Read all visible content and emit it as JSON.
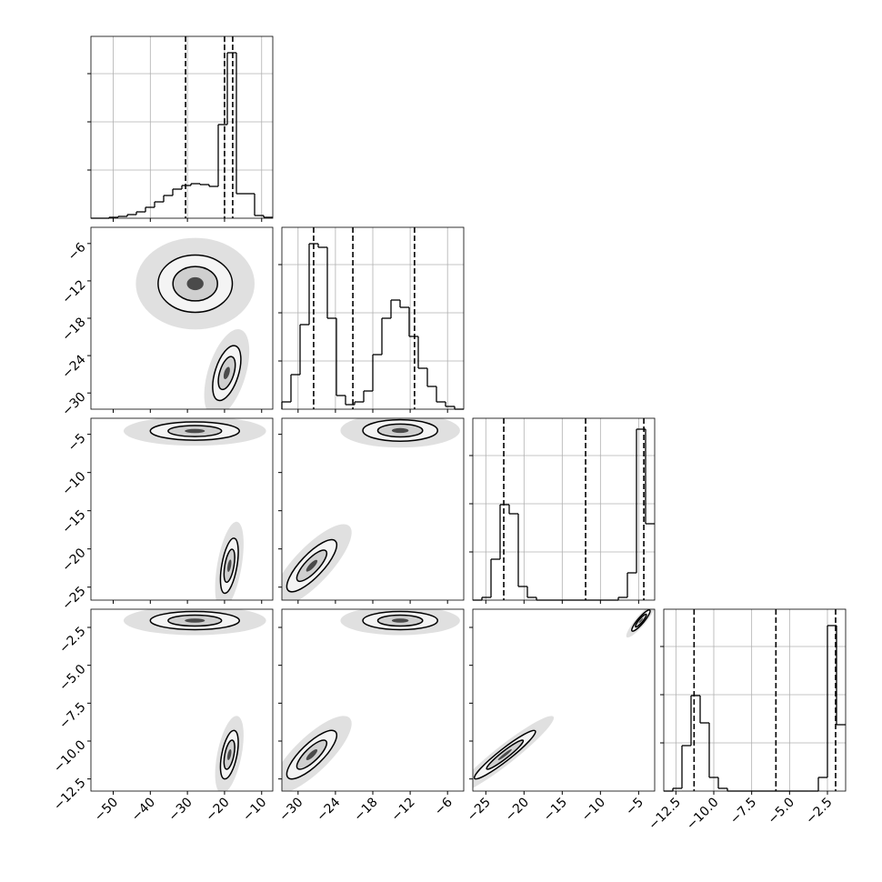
{
  "chart_data": {
    "type": "corner",
    "grid": true,
    "parameters": [
      {
        "lim": [
          -56,
          -7
        ],
        "ticks": [
          {
            "value": -50,
            "label": "−50"
          },
          {
            "value": -40,
            "label": "−40"
          },
          {
            "value": -30,
            "label": "−30"
          },
          {
            "value": -20,
            "label": "−20"
          },
          {
            "value": -10,
            "label": "−10"
          }
        ]
      },
      {
        "lim": [
          -32.6,
          -3.4
        ],
        "ticks": [
          {
            "value": -30,
            "label": "−30"
          },
          {
            "value": -24,
            "label": "−24"
          },
          {
            "value": -18,
            "label": "−18"
          },
          {
            "value": -12,
            "label": "−12"
          },
          {
            "value": -6,
            "label": "−6"
          }
        ]
      },
      {
        "lim": [
          -26.7,
          -2.9
        ],
        "ticks": [
          {
            "value": -25,
            "label": "−25"
          },
          {
            "value": -20,
            "label": "−20"
          },
          {
            "value": -15,
            "label": "−15"
          },
          {
            "value": -10,
            "label": "−10"
          },
          {
            "value": -5,
            "label": "−5"
          }
        ]
      },
      {
        "lim": [
          -13.3,
          -1.3
        ],
        "ticks": [
          {
            "value": -12.5,
            "label": "−12.5"
          },
          {
            "value": -10,
            "label": "−10.0"
          },
          {
            "value": -7.5,
            "label": "−7.5"
          },
          {
            "value": -5,
            "label": "−5.0"
          },
          {
            "value": -2.5,
            "label": "−2.5"
          }
        ]
      }
    ],
    "hist_ylim": [
      0,
      200
    ],
    "hist_yticks": [
      53,
      106,
      159
    ],
    "histograms": [
      {
        "bins": [
          -56,
          -53.55,
          -51.1,
          -48.65,
          -46.2,
          -43.75,
          -41.3,
          -38.85,
          -36.4,
          -33.95,
          -31.5,
          -29.05,
          -26.6,
          -24.15,
          -21.7,
          -19.25,
          -16.8,
          -14.35,
          -11.9,
          -9.45,
          -7
        ],
        "counts": [
          0,
          0,
          1,
          2,
          4,
          7,
          12,
          18,
          25,
          32,
          36,
          38,
          37,
          35,
          103,
          182,
          27,
          27,
          3,
          1
        ],
        "quantiles": [
          -30.5,
          -20,
          -17.8
        ]
      },
      {
        "bins": [
          -32.6,
          -31.14,
          -29.68,
          -28.22,
          -26.76,
          -25.3,
          -23.84,
          -22.38,
          -20.92,
          -19.46,
          -18,
          -16.54,
          -15.08,
          -13.62,
          -12.16,
          -10.7,
          -9.24,
          -7.78,
          -6.32,
          -4.86,
          -3.4
        ],
        "counts": [
          8,
          38,
          93,
          182,
          178,
          100,
          15,
          5,
          8,
          20,
          60,
          100,
          120,
          112,
          80,
          45,
          25,
          8,
          3,
          0
        ],
        "quantiles": [
          -27.5,
          -21.2,
          -11.3
        ]
      },
      {
        "bins": [
          -26.7,
          -25.51,
          -24.32,
          -23.13,
          -21.94,
          -20.75,
          -19.56,
          -18.37,
          -17.18,
          -15.99,
          -14.8,
          -13.61,
          -12.42,
          -11.23,
          -10.04,
          -8.85,
          -7.66,
          -6.47,
          -5.28,
          -4.09,
          -2.9
        ],
        "counts": [
          0,
          3,
          45,
          105,
          95,
          15,
          3,
          0,
          0,
          0,
          0,
          0,
          0,
          0,
          0,
          0,
          3,
          30,
          188,
          84
        ],
        "quantiles": [
          -22.65,
          -11.94,
          -4.32
        ]
      },
      {
        "bins": [
          -13.3,
          -12.7,
          -12.1,
          -11.5,
          -10.9,
          -10.3,
          -9.7,
          -9.1,
          -8.5,
          -7.9,
          -7.3,
          -6.7,
          -6.1,
          -5.5,
          -4.9,
          -4.3,
          -3.7,
          -3.1,
          -2.5,
          -1.9,
          -1.3
        ],
        "counts": [
          0,
          3,
          50,
          105,
          75,
          15,
          3,
          0,
          0,
          0,
          0,
          0,
          0,
          0,
          0,
          0,
          0,
          15,
          182,
          73
        ],
        "quantiles": [
          -11.3,
          -5.9,
          -1.96
        ]
      }
    ],
    "pairs": [
      {
        "blobs": [
          {
            "x": -27.9,
            "y": -12.45,
            "sx": 5,
            "sy": 2.3,
            "rho": 0
          },
          {
            "x": -19.4,
            "y": -26.8,
            "sx": 1.9,
            "sy": 2.2,
            "rho": 0.5
          }
        ]
      },
      {
        "blobs": [
          {
            "x": -28,
            "y": -4.57,
            "sx": 6,
            "sy": 0.6,
            "rho": 0
          },
          {
            "x": -18.7,
            "y": -22.2,
            "sx": 1.2,
            "sy": 1.8,
            "rho": 0.5
          }
        ]
      },
      {
        "blobs": [
          {
            "x": -13.6,
            "y": -4.5,
            "sx": 3,
            "sy": 0.7,
            "rho": 0
          },
          {
            "x": -27.8,
            "y": -22.2,
            "sx": 2,
            "sy": 1.7,
            "rho": 0.8
          }
        ]
      },
      {
        "blobs": [
          {
            "x": -28,
            "y": -2.05,
            "sx": 6,
            "sy": 0.3,
            "rho": 0
          },
          {
            "x": -18.7,
            "y": -10.9,
            "sx": 1.2,
            "sy": 0.8,
            "rho": 0.5
          }
        ]
      },
      {
        "blobs": [
          {
            "x": -13.6,
            "y": -2.05,
            "sx": 3,
            "sy": 0.3,
            "rho": 0
          },
          {
            "x": -27.8,
            "y": -10.9,
            "sx": 2,
            "sy": 0.8,
            "rho": 0.8
          }
        ]
      },
      {
        "blobs": [
          {
            "x": -4.7,
            "y": -2.05,
            "sx": 0.6,
            "sy": 0.35,
            "rho": 0.9
          },
          {
            "x": -22.5,
            "y": -10.9,
            "sx": 2,
            "sy": 0.8,
            "rho": 0.95
          }
        ]
      }
    ]
  }
}
